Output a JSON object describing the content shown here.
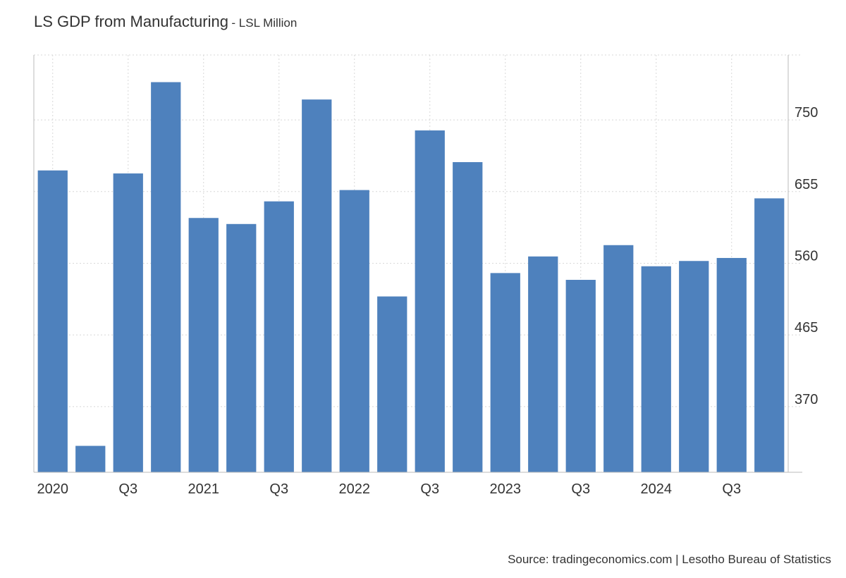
{
  "title": "LS GDP from Manufacturing",
  "subtitle": "- LSL Million",
  "source": "Source: tradingeconomics.com | Lesotho Bureau of Statistics",
  "colors": {
    "bar": "#4e81bd",
    "grid": "#d8d8d8",
    "axis": "#bbbbbb",
    "text": "#333333"
  },
  "chart_data": {
    "type": "bar",
    "categories": [
      "2020 Q1",
      "2020 Q2",
      "2020 Q3",
      "2020 Q4",
      "2021 Q1",
      "2021 Q2",
      "2021 Q3",
      "2021 Q4",
      "2022 Q1",
      "2022 Q2",
      "2022 Q3",
      "2022 Q4",
      "2023 Q1",
      "2023 Q2",
      "2023 Q3",
      "2023 Q4",
      "2024 Q1",
      "2024 Q2",
      "2024 Q3",
      "2024 Q4"
    ],
    "x_tick_labels": [
      "2020",
      "",
      "Q3",
      "",
      "2021",
      "",
      "Q3",
      "",
      "2022",
      "",
      "Q3",
      "",
      "2023",
      "",
      "Q3",
      "",
      "2024",
      "",
      "Q3",
      ""
    ],
    "values": [
      683,
      318,
      679,
      800,
      620,
      612,
      642,
      777,
      657,
      516,
      736,
      694,
      547,
      569,
      538,
      584,
      556,
      563,
      567,
      646
    ],
    "y_ticks": [
      370,
      465,
      560,
      655,
      750
    ],
    "ylim": [
      283,
      836
    ],
    "grid": true,
    "y_axis_side": "right"
  }
}
